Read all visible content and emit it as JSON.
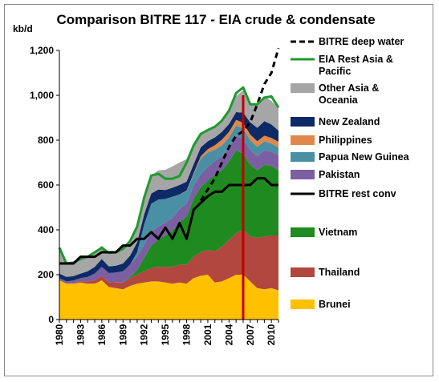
{
  "chart_data": {
    "type": "area",
    "title": "Comparison BITRE 117 - EIA crude & condensate",
    "ylabel": "kb/d",
    "xlabel": "",
    "ylim": [
      0,
      1200
    ],
    "xlim": [
      1980,
      2011
    ],
    "yticks": [
      0,
      200,
      400,
      600,
      800,
      1000,
      1200
    ],
    "ytick_labels": [
      "0",
      "200",
      "400",
      "600",
      "800",
      "1,000",
      "1,200"
    ],
    "xticks": [
      1980,
      1983,
      1986,
      1989,
      1992,
      1995,
      1998,
      2001,
      2004,
      2007,
      2010
    ],
    "xtick_labels": [
      "1980",
      "1983",
      "1986",
      "1989",
      "1992",
      "1995",
      "1998",
      "2001",
      "2004",
      "2007",
      "2010"
    ],
    "grid": false,
    "legend_position": "right",
    "x": [
      1980,
      1981,
      1982,
      1983,
      1984,
      1985,
      1986,
      1987,
      1988,
      1989,
      1990,
      1991,
      1992,
      1993,
      1994,
      1995,
      1996,
      1997,
      1998,
      1999,
      2000,
      2001,
      2002,
      2003,
      2004,
      2005,
      2006,
      2007,
      2008,
      2009,
      2010,
      2011
    ],
    "stacked_series": [
      {
        "name": "Brunei",
        "color": "#FFC000",
        "values": [
          175,
          160,
          160,
          165,
          160,
          160,
          175,
          145,
          140,
          135,
          150,
          160,
          165,
          170,
          170,
          165,
          160,
          165,
          160,
          185,
          195,
          200,
          165,
          170,
          185,
          200,
          200,
          170,
          140,
          135,
          140,
          130
        ]
      },
      {
        "name": "Thailand",
        "color": "#B1473E",
        "values": [
          0,
          0,
          2,
          5,
          10,
          15,
          20,
          22,
          25,
          30,
          35,
          40,
          50,
          60,
          65,
          70,
          75,
          80,
          85,
          95,
          105,
          110,
          140,
          155,
          170,
          185,
          200,
          200,
          225,
          235,
          235,
          245
        ]
      },
      {
        "name": "Vietnam",
        "color": "#1F8A1F",
        "values": [
          0,
          0,
          0,
          0,
          0,
          0,
          0,
          0,
          0,
          0,
          5,
          20,
          60,
          100,
          120,
          140,
          160,
          190,
          215,
          260,
          290,
          310,
          340,
          340,
          350,
          370,
          340,
          320,
          300,
          320,
          310,
          290
        ]
      },
      {
        "name": "Pakistan",
        "color": "#7B5FA3",
        "values": [
          10,
          10,
          12,
          15,
          20,
          30,
          40,
          40,
          45,
          50,
          55,
          60,
          60,
          62,
          60,
          58,
          58,
          58,
          58,
          58,
          58,
          60,
          62,
          62,
          62,
          65,
          65,
          65,
          65,
          65,
          65,
          68
        ]
      },
      {
        "name": "Papua New Guinea",
        "color": "#4A90A4",
        "values": [
          0,
          0,
          0,
          0,
          0,
          0,
          0,
          0,
          0,
          0,
          0,
          20,
          90,
          125,
          120,
          105,
          95,
          65,
          55,
          50,
          70,
          65,
          50,
          50,
          45,
          45,
          48,
          45,
          40,
          40,
          35,
          35
        ]
      },
      {
        "name": "Philippines",
        "color": "#E0884A",
        "values": [
          0,
          0,
          0,
          0,
          0,
          0,
          0,
          0,
          0,
          0,
          0,
          0,
          0,
          0,
          0,
          0,
          0,
          0,
          2,
          5,
          10,
          15,
          20,
          25,
          25,
          25,
          25,
          25,
          25,
          25,
          25,
          25
        ]
      },
      {
        "name": "New Zealand",
        "color": "#0E2A66",
        "values": [
          20,
          20,
          20,
          20,
          25,
          30,
          35,
          30,
          30,
          35,
          40,
          45,
          45,
          45,
          45,
          40,
          40,
          42,
          40,
          40,
          40,
          35,
          35,
          35,
          35,
          35,
          45,
          55,
          60,
          65,
          60,
          50
        ]
      },
      {
        "name": "Other Asia & Oceania",
        "color": "#A6A6A6",
        "values": [
          115,
          60,
          60,
          65,
          65,
          65,
          60,
          60,
          60,
          65,
          65,
          70,
          75,
          80,
          85,
          90,
          95,
          100,
          100,
          85,
          60,
          50,
          48,
          50,
          60,
          70,
          100,
          80,
          105,
          110,
          105,
          100
        ]
      }
    ],
    "line_series": [
      {
        "name": "BITRE deep water",
        "color": "#000000",
        "style": "dashed",
        "x": [
          2000,
          2001,
          2002,
          2003,
          2004,
          2005,
          2006,
          2007,
          2008,
          2009,
          2010,
          2011
        ],
        "values": [
          530,
          580,
          630,
          700,
          770,
          820,
          840,
          880,
          960,
          1050,
          1100,
          1210
        ]
      },
      {
        "name": "EIA Rest Asia & Pacific",
        "color": "#1F9A2F",
        "style": "solid",
        "x": [
          1980,
          1981,
          1982,
          1983,
          1984,
          1985,
          1986,
          1987,
          1988,
          1989,
          1990,
          1991,
          1992,
          1993,
          1994,
          1995,
          1996,
          1997,
          1998,
          1999,
          2000,
          2001,
          2002,
          2003,
          2004,
          2005,
          2006,
          2007,
          2008,
          2009,
          2010,
          2011
        ],
        "values": [
          320,
          250,
          254,
          270,
          280,
          300,
          320,
          297,
          300,
          315,
          350,
          415,
          545,
          642,
          650,
          628,
          628,
          640,
          700,
          777,
          828,
          845,
          860,
          887,
          932,
          1010,
          1035,
          960,
          960,
          990,
          995,
          945
        ]
      },
      {
        "name": "BITRE rest conv",
        "color": "#000000",
        "style": "solid",
        "x": [
          1980,
          1981,
          1982,
          1983,
          1984,
          1985,
          1986,
          1987,
          1988,
          1989,
          1990,
          1991,
          1992,
          1993,
          1994,
          1995,
          1996,
          1997,
          1998,
          1999,
          2000,
          2001,
          2002,
          2003,
          2004,
          2005,
          2006,
          2007,
          2008,
          2009,
          2010,
          2011
        ],
        "values": [
          250,
          250,
          250,
          280,
          280,
          280,
          300,
          300,
          300,
          330,
          330,
          360,
          360,
          390,
          360,
          410,
          360,
          430,
          360,
          490,
          520,
          550,
          570,
          570,
          600,
          600,
          600,
          600,
          630,
          630,
          600,
          600
        ]
      }
    ],
    "marker_line": {
      "x": 2006,
      "color": "#C00000"
    },
    "legend": [
      {
        "label": "BITRE deep water",
        "kind": "dash",
        "color": "#000000"
      },
      {
        "label": "EIA Rest Asia & Pacific",
        "kind": "line",
        "color": "#1F9A2F"
      },
      {
        "label": "Other Asia & Oceania",
        "kind": "box",
        "color": "#A6A6A6"
      },
      {
        "label": "New Zealand",
        "kind": "box",
        "color": "#0E2A66"
      },
      {
        "label": "Philippines",
        "kind": "box",
        "color": "#E0884A"
      },
      {
        "label": "Papua New Guinea",
        "kind": "box",
        "color": "#4A90A4"
      },
      {
        "label": "Pakistan",
        "kind": "box",
        "color": "#7B5FA3"
      },
      {
        "label": "BITRE rest conv",
        "kind": "line",
        "color": "#000000"
      },
      {
        "label": "Vietnam",
        "kind": "box",
        "color": "#1F8A1F"
      },
      {
        "label": "Thailand",
        "kind": "box",
        "color": "#B1473E"
      },
      {
        "label": "Brunei",
        "kind": "box",
        "color": "#FFC000"
      }
    ]
  }
}
